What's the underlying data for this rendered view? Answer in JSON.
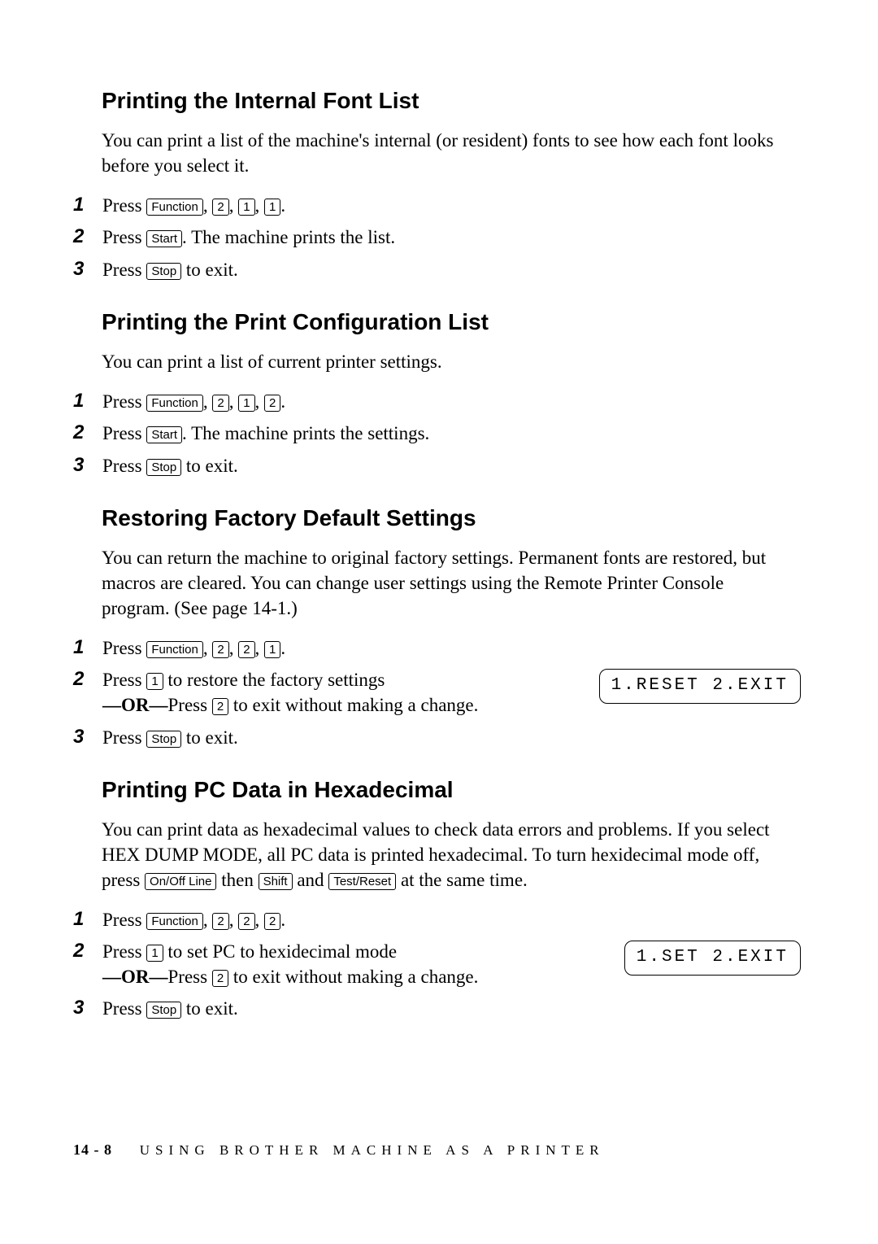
{
  "keys": {
    "function": "Function",
    "start": "Start",
    "stop": "Stop",
    "onoff": "On/Off Line",
    "shift": "Shift",
    "testreset": "Test/Reset",
    "d1": "1",
    "d2": "2"
  },
  "sec1": {
    "title": "Printing the Internal Font List",
    "body": "You can print a list of the machine's internal (or resident) fonts to see how each font looks before you select it.",
    "s1a": "Press ",
    "s1b": ", ",
    "s1c": ", ",
    "s1d": ", ",
    "s1e": ".",
    "s2a": " Press ",
    "s2b": ". The machine prints the list.",
    "s3a": "Press ",
    "s3b": " to exit."
  },
  "sec2": {
    "title": "Printing the Print Configuration List",
    "body": "You can print a list of current printer settings.",
    "s1a": "Press ",
    "s1b": ", ",
    "s1c": ", ",
    "s1d": ", ",
    "s1e": ".",
    "s2a": " Press ",
    "s2b": ". The machine prints the settings.",
    "s3a": "Press ",
    "s3b": " to exit."
  },
  "sec3": {
    "title": "Restoring Factory Default Settings",
    "body": "You can return the machine to original factory settings.  Permanent fonts are restored, but macros are cleared.  You can change user settings using the Remote Printer Console program. (See page 14-1.)",
    "s1a": "Press ",
    "s1b": ", ",
    "s1c": ", ",
    "s1d": ", ",
    "s1e": ".",
    "s2a": "Press ",
    "s2b": " to restore the factory settings",
    "s2or": "—OR—",
    "s2c": "Press ",
    "s2d": " to exit without making a change.",
    "lcd": "1.RESET 2.EXIT",
    "s3a": "Press ",
    "s3b": " to exit."
  },
  "sec4": {
    "title": "Printing PC Data in Hexadecimal",
    "body1": "You can print data as hexadecimal values to check data errors and problems. If you select HEX DUMP MODE, all PC data is printed hexadecimal. To turn hexidecimal mode off, press ",
    "body2": " then ",
    "body3": " and ",
    "body4": " at the same time.",
    "s1a": "Press ",
    "s1b": ", ",
    "s1c": ", ",
    "s1d": ", ",
    "s1e": ".",
    "s2a": "Press ",
    "s2b": " to set PC to hexidecimal mode",
    "s2or": "—OR—",
    "s2c": "Press ",
    "s2d": " to exit without making a change.",
    "lcd": "1.SET 2.EXIT",
    "s3a": "Press ",
    "s3b": " to exit."
  },
  "footer": {
    "page": "14 - 8",
    "chapter": "USING BROTHER MACHINE AS A PRINTER"
  },
  "nums": {
    "n1": "1",
    "n2": "2",
    "n3": "3"
  }
}
